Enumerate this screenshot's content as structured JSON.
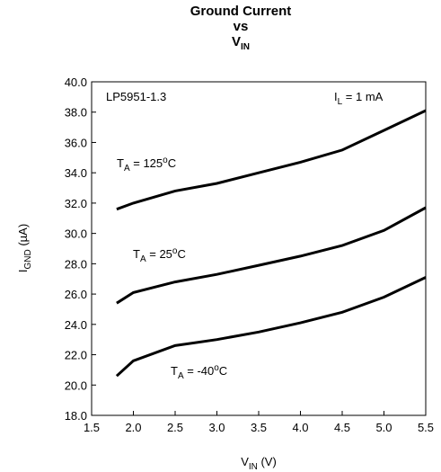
{
  "chart_data": {
    "type": "line",
    "title": [
      "Ground Current",
      "vs",
      "V",
      "IN"
    ],
    "x_label": [
      "V",
      "IN",
      " (V)"
    ],
    "y_label": [
      "I",
      "GND",
      " (µA)"
    ],
    "annotations": [
      [
        "LP5951-1.3"
      ],
      [
        "I",
        "L",
        " = 1 mA"
      ]
    ],
    "x": [
      1.8,
      2.0,
      2.5,
      3.0,
      3.5,
      4.0,
      4.5,
      5.0,
      5.5
    ],
    "series": [
      {
        "name": [
          "T",
          "A",
          " = 125",
          "o",
          "C"
        ],
        "color": "#000000",
        "values": [
          31.6,
          32.0,
          32.8,
          33.3,
          34.0,
          34.7,
          35.5,
          36.8,
          38.1
        ]
      },
      {
        "name": [
          "T",
          "A",
          " = 25",
          "o",
          "C"
        ],
        "color": "#000000",
        "values": [
          25.4,
          26.1,
          26.8,
          27.3,
          27.9,
          28.5,
          29.2,
          30.2,
          31.7
        ]
      },
      {
        "name": [
          "T",
          "A",
          " = -40",
          "o",
          "C"
        ],
        "color": "#000000",
        "values": [
          20.6,
          21.6,
          22.6,
          23.0,
          23.5,
          24.1,
          24.8,
          25.8,
          27.1
        ]
      }
    ],
    "xlim": [
      1.5,
      5.5
    ],
    "xticks": [
      1.5,
      {
        "value": 2,
        "label": "2.0"
      },
      2.5,
      {
        "value": 3,
        "label": "3.0"
      },
      3.5,
      {
        "value": 4,
        "label": "4.0"
      },
      4.5,
      {
        "value": 5,
        "label": "5.0"
      },
      5.5
    ],
    "ylim": [
      18,
      40
    ],
    "yticks": [
      {
        "value": 18,
        "label": "18.0"
      },
      {
        "value": 20,
        "label": "20.0"
      },
      {
        "value": 22,
        "label": "22.0"
      },
      {
        "value": 24,
        "label": "24.0"
      },
      {
        "value": 26,
        "label": "26.0"
      },
      {
        "value": 28,
        "label": "28.0"
      },
      {
        "value": 30,
        "label": "30.0"
      },
      {
        "value": 32,
        "label": "32.0"
      },
      {
        "value": 34,
        "label": "34.0"
      },
      {
        "value": 36,
        "label": "36.0"
      },
      {
        "value": 38,
        "label": "38.0"
      },
      {
        "value": 40,
        "label": "40.0"
      }
    ],
    "grid": false
  }
}
